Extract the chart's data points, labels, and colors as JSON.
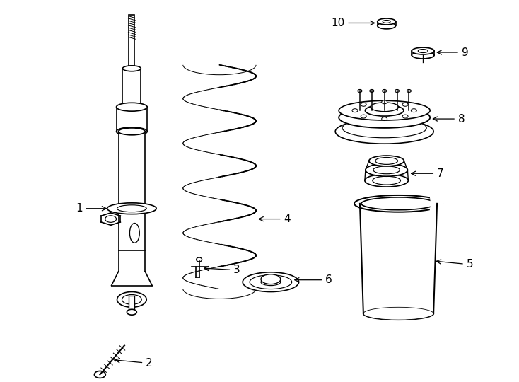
{
  "background_color": "#ffffff",
  "line_color": "#000000",
  "line_width": 1.2,
  "fig_width": 7.34,
  "fig_height": 5.4,
  "dpi": 100
}
